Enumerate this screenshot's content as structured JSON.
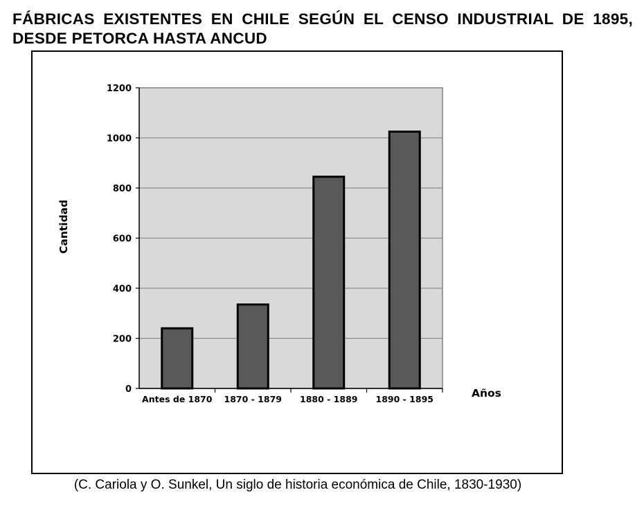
{
  "page": {
    "title": "FÁBRICAS EXISTENTES EN CHILE SEGÚN EL CENSO INDUSTRIAL DE 1895, DESDE PETORCA HASTA ANCUD",
    "source": "(C. Cariola y O. Sunkel, Un siglo de historia económica de Chile, 1830-1930)"
  },
  "chart_data": {
    "type": "bar",
    "title": "FÁBRICAS EXISTENTES EN CHILE SEGÚN EL CENSO INDUSTRIAL DE 1895, DESDE PETORCA HASTA ANCUD",
    "categories": [
      "Antes de 1870",
      "1870 - 1879",
      "1880 - 1889",
      "1890 - 1895"
    ],
    "values": [
      240,
      335,
      845,
      1025
    ],
    "xlabel": "Años",
    "ylabel": "Cantidad",
    "ylim": [
      0,
      1200
    ],
    "yticks": [
      0,
      200,
      400,
      600,
      800,
      1000,
      1200
    ],
    "grid": true,
    "legend": "none",
    "colors": {
      "bar": "#595959",
      "bar_outline": "#000000",
      "plot_background": "#d9d9d9",
      "gridline": "#8c8c8c"
    }
  }
}
